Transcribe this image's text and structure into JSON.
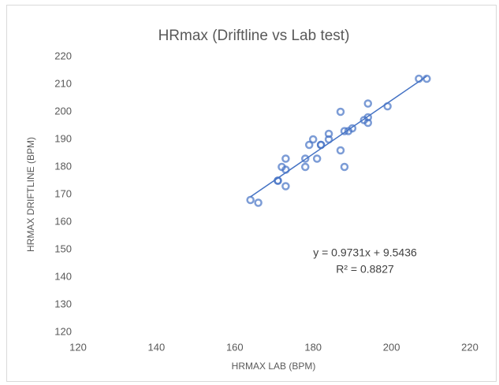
{
  "chart_data": {
    "type": "scatter",
    "title": "HRmax (Driftline vs Lab test)",
    "x_label": "HRMAX LAB (BPM)",
    "y_label": "HRMAX DRIFTLINE (BPM)",
    "color": "#4472c4",
    "x": [
      164,
      166,
      171,
      171,
      172,
      173,
      173,
      173,
      178,
      178,
      179,
      180,
      181,
      182,
      182,
      184,
      184,
      187,
      187,
      188,
      188,
      189,
      190,
      193,
      194,
      194,
      194,
      199,
      207,
      209
    ],
    "values": [
      168,
      167,
      175,
      175,
      180,
      183,
      179,
      173,
      183,
      180,
      188,
      190,
      183,
      188,
      188,
      192,
      190,
      200,
      186,
      180,
      193,
      193,
      194,
      197,
      198,
      196,
      203,
      202,
      212,
      212
    ],
    "xlim": [
      120,
      220
    ],
    "xticks": [
      120,
      140,
      160,
      180,
      200,
      220
    ],
    "ylim": [
      120,
      220
    ],
    "yticks": [
      120,
      130,
      140,
      150,
      160,
      170,
      180,
      190,
      200,
      210,
      220
    ],
    "grid": false,
    "trendline": {
      "slope": 0.9731,
      "intercept": 9.5436,
      "r2": 0.8827
    },
    "annotations": [
      "y = 0.9731x + 9.5436",
      "R² = 0.8827"
    ]
  }
}
